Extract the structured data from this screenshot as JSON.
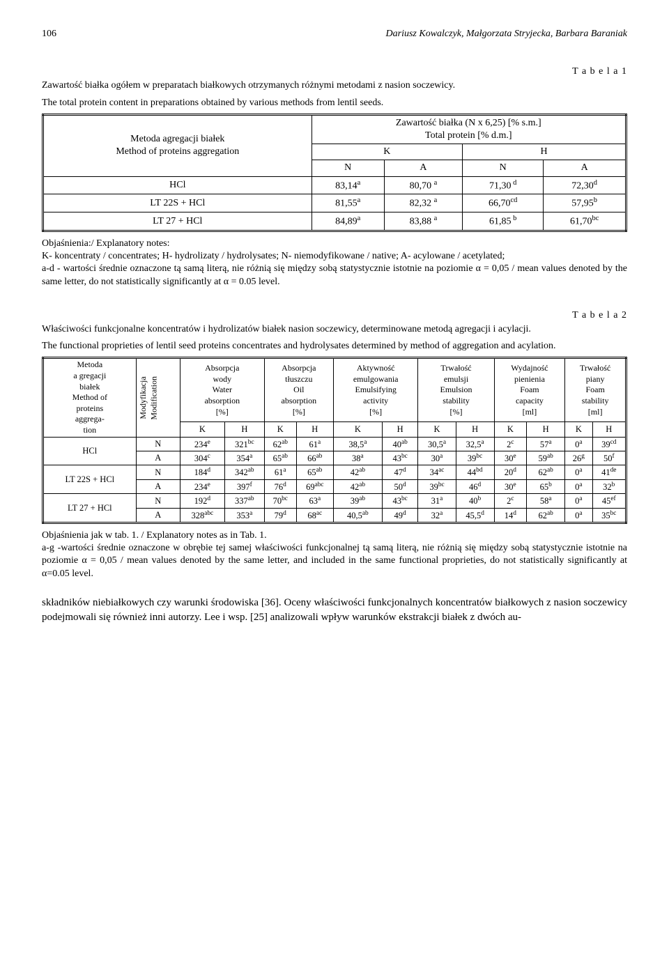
{
  "header": {
    "page_number": "106",
    "authors": "Dariusz Kowalczyk, Małgorzata Stryjecka, Barbara Baraniak"
  },
  "table1": {
    "label": "T a b e l a  1",
    "caption_pl": "Zawartość białka ogółem w preparatach białkowych otrzymanych różnymi metodami z nasion soczewicy.",
    "caption_en": "The total protein content in preparations obtained by various methods from lentil seeds.",
    "col_head": {
      "method_pl": "Metoda agregacji białek",
      "method_en": "Method of proteins aggregation",
      "content_pl": "Zawartość białka (N x 6,25) [% s.m.]",
      "content_en": "Total protein [% d.m.]",
      "K": "K",
      "H": "H",
      "N": "N",
      "A": "A"
    },
    "rows": [
      {
        "name": "HCl",
        "KN": "83,14",
        "KN_s": "a",
        "KA": "80,70",
        "KA_s": "a",
        "HN": "71,30",
        "HN_s": "d",
        "HA": "72,30",
        "HA_s": "d"
      },
      {
        "name": "LT 22S + HCl",
        "KN": "81,55",
        "KN_s": "a",
        "KA": "82,32",
        "KA_s": "a",
        "HN": "66,70",
        "HN_s": "cd",
        "HA": "57,95",
        "HA_s": "b"
      },
      {
        "name": "LT 27 + HCl",
        "KN": "84,89",
        "KN_s": "a",
        "KA": "83,88",
        "KA_s": "a",
        "HN": "61,85",
        "HN_s": "b",
        "HA": "61,70",
        "HA_s": "bc"
      }
    ],
    "notes": {
      "head": "Objaśnienia:/ Explanatory notes:",
      "line1": "K- koncentraty / concentrates; H- hydrolizaty / hydrolysates; N- niemodyfikowane / native; A- acylowane / acetylated;",
      "line2_a": "a-d - wartości średnie oznaczone tą samą literą, nie różnią się między sobą statystycznie istotnie na poziomie ",
      "line2_b": " = 0,05 / mean values denoted by the same letter, do not statistically significantly at ",
      "line2_c": " = 0.05 level."
    }
  },
  "table2": {
    "label": "T a b e l a  2",
    "caption_pl": "Właściwości funkcjonalne koncentratów i hydrolizatów białek nasion soczewicy, determinowane metodą agregacji i acylacji.",
    "caption_en": "The functional proprieties of lentil seed proteins concentrates and hydrolysates determined by method of aggregation and acylation.",
    "heads": {
      "method": "Metoda a gregacji białek Method of proteins aggregation",
      "method_l1": "Metoda",
      "method_l2": "a gregacji",
      "method_l3": "białek",
      "method_l4": "Method of",
      "method_l5": "proteins",
      "method_l6": "aggrega-",
      "method_l7": "tion",
      "mod": "Modyfikacja Modification",
      "mod_l1": "Modyfikacja",
      "mod_l2": "Modification",
      "p1_l1": "Absorpcja",
      "p1_l2": "wody",
      "p1_l3": "Water",
      "p1_l4": "absorption",
      "p1_l5": "[%]",
      "p2_l1": "Absorpcja",
      "p2_l2": "tłuszczu",
      "p2_l3": "Oil",
      "p2_l4": "absorption",
      "p2_l5": "[%]",
      "p3_l1": "Aktywność",
      "p3_l2": "emulgowania",
      "p3_l3": "Emulsifying",
      "p3_l4": "activity",
      "p3_l5": "[%]",
      "p4_l1": "Trwałość",
      "p4_l2": "emulsji",
      "p4_l3": "Emulsion",
      "p4_l4": "stability",
      "p4_l5": "[%]",
      "p5_l1": "Wydajność",
      "p5_l2": "pienienia",
      "p5_l3": "Foam",
      "p5_l4": "capacity",
      "p5_l5": "[ml]",
      "p6_l1": "Trwałość",
      "p6_l2": "piany",
      "p6_l3": "Foam",
      "p6_l4": "stability",
      "p6_l5": "[ml]",
      "K": "K",
      "H": "H",
      "N": "N",
      "A": "A"
    },
    "rows": [
      {
        "g": "HCl",
        "m": "N",
        "v": [
          [
            "234",
            "e"
          ],
          [
            "321",
            "bc"
          ],
          [
            "62",
            "ab"
          ],
          [
            "61",
            "a"
          ],
          [
            "38,5",
            "a"
          ],
          [
            "40",
            "ab"
          ],
          [
            "30,5",
            "a"
          ],
          [
            "32,5",
            "a"
          ],
          [
            "2",
            "c"
          ],
          [
            "57",
            "a"
          ],
          [
            "0",
            "a"
          ],
          [
            "39",
            "cd"
          ]
        ]
      },
      {
        "g": "HCl",
        "m": "A",
        "v": [
          [
            "304",
            "c"
          ],
          [
            "354",
            "a"
          ],
          [
            "65",
            "ab"
          ],
          [
            "66",
            "ab"
          ],
          [
            "38",
            "a"
          ],
          [
            "43",
            "bc"
          ],
          [
            "30",
            "a"
          ],
          [
            "39",
            "bc"
          ],
          [
            "30",
            "e"
          ],
          [
            "59",
            "ab"
          ],
          [
            "26",
            "g"
          ],
          [
            "50",
            "f"
          ]
        ]
      },
      {
        "g": "LT 22S + HCl",
        "m": "N",
        "v": [
          [
            "184",
            "d"
          ],
          [
            "342",
            "ab"
          ],
          [
            "61",
            "a"
          ],
          [
            "65",
            "ab"
          ],
          [
            "42",
            "ab"
          ],
          [
            "47",
            "d"
          ],
          [
            "34",
            "ac"
          ],
          [
            "44",
            "bd"
          ],
          [
            "20",
            "d"
          ],
          [
            "62",
            "ab"
          ],
          [
            "0",
            "a"
          ],
          [
            "41",
            "de"
          ]
        ]
      },
      {
        "g": "LT 22S + HCl",
        "m": "A",
        "v": [
          [
            "234",
            "e"
          ],
          [
            "397",
            "f"
          ],
          [
            "76",
            "d"
          ],
          [
            "69",
            "abc"
          ],
          [
            "42",
            "ab"
          ],
          [
            "50",
            "d"
          ],
          [
            "39",
            "bc"
          ],
          [
            "46",
            "d"
          ],
          [
            "30",
            "e"
          ],
          [
            "65",
            "b"
          ],
          [
            "0",
            "a"
          ],
          [
            "32",
            "b"
          ]
        ]
      },
      {
        "g": "LT 27 + HCl",
        "m": "N",
        "v": [
          [
            "192",
            "d"
          ],
          [
            "337",
            "ab"
          ],
          [
            "70",
            "bc"
          ],
          [
            "63",
            "a"
          ],
          [
            "39",
            "ab"
          ],
          [
            "43",
            "bc"
          ],
          [
            "31",
            "a"
          ],
          [
            "40",
            "b"
          ],
          [
            "2",
            "c"
          ],
          [
            "58",
            "a"
          ],
          [
            "0",
            "a"
          ],
          [
            "45",
            "ef"
          ]
        ]
      },
      {
        "g": "LT 27 + HCl",
        "m": "A",
        "v": [
          [
            "328",
            "abc"
          ],
          [
            "353",
            "a"
          ],
          [
            "79",
            "d"
          ],
          [
            "68",
            "ac"
          ],
          [
            "40,5",
            "ab"
          ],
          [
            "49",
            "d"
          ],
          [
            "32",
            "a"
          ],
          [
            "45,5",
            "d"
          ],
          [
            "14",
            "d"
          ],
          [
            "62",
            "ab"
          ],
          [
            "0",
            "a"
          ],
          [
            "35",
            "bc"
          ]
        ]
      }
    ],
    "notes": {
      "line1": "Objaśnienia jak w tab. 1. / Explanatory notes as in Tab. 1.",
      "line2_a": "a-g -wartości średnie oznaczone w obrębie tej samej właściwości funkcjonalnej tą samą literą, nie różnią się między sobą statystycznie istotnie na poziomie ",
      "line2_b": " = 0,05 / mean values denoted by the same letter, and included in the same functional proprieties, do not statistically significantly at ",
      "line2_c": "=0.05 level."
    }
  },
  "body": {
    "text": "składników niebiałkowych czy warunki środowiska [36]. Oceny właściwości funkcjonalnych koncentratów białkowych z nasion soczewicy podejmowali się również inni autorzy. Lee i wsp. [25] analizowali wpływ warunków ekstrakcji białek z dwóch au-"
  },
  "symbols": {
    "alpha": "α"
  },
  "colors": {
    "text": "#000000",
    "background": "#ffffff",
    "border": "#000000"
  }
}
